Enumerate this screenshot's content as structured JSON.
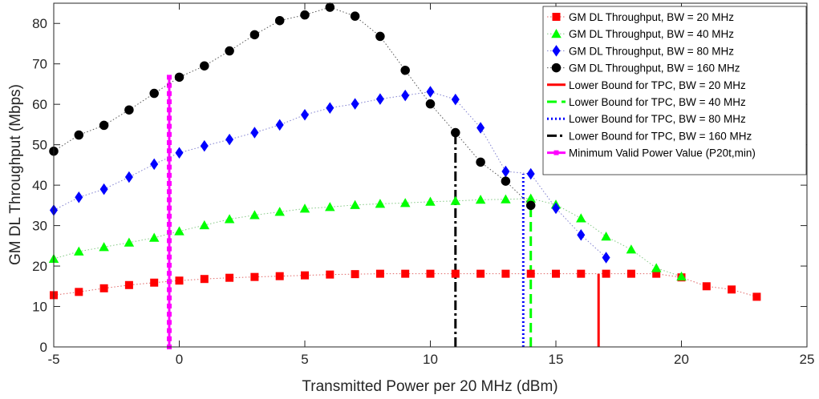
{
  "chart_data": {
    "type": "line",
    "title": "",
    "xlabel": "Transmitted Power per 20 MHz (dBm)",
    "ylabel": "GM DL Throughput (Mbps)",
    "xlim": [
      -5,
      25
    ],
    "ylim": [
      0,
      85
    ],
    "xticks": [
      -5,
      0,
      5,
      10,
      15,
      20,
      25
    ],
    "yticks": [
      0,
      10,
      20,
      30,
      40,
      50,
      60,
      70,
      80
    ],
    "xtick_labels": [
      "-5",
      "0",
      "5",
      "10",
      "15",
      "20",
      "25"
    ],
    "ytick_labels": [
      "0",
      "10",
      "20",
      "30",
      "40",
      "50",
      "60",
      "70",
      "80"
    ],
    "grid": false,
    "legend_position": "top-right",
    "series": [
      {
        "name": "GM DL Throughput, BW = 20 MHz",
        "color": "#ff0000",
        "marker": "square",
        "line": "dotted",
        "x": [
          -5,
          -4,
          -3,
          -2,
          -1,
          0,
          1,
          2,
          3,
          4,
          5,
          6,
          7,
          8,
          9,
          10,
          11,
          12,
          13,
          14,
          15,
          16,
          17,
          18,
          19,
          20,
          21,
          22,
          23
        ],
        "y": [
          12.8,
          13.6,
          14.5,
          15.3,
          15.9,
          16.4,
          16.8,
          17.1,
          17.3,
          17.5,
          17.7,
          17.9,
          18.0,
          18.1,
          18.1,
          18.1,
          18.1,
          18.1,
          18.1,
          18.1,
          18.1,
          18.1,
          18.1,
          18.1,
          18.1,
          17.2,
          15.0,
          14.2,
          12.4
        ]
      },
      {
        "name": "GM DL Throughput, BW = 40 MHz",
        "color": "#00ff00",
        "marker": "triangle",
        "line": "dotted",
        "x": [
          -5,
          -4,
          -3,
          -2,
          -1,
          0,
          1,
          2,
          3,
          4,
          5,
          6,
          7,
          8,
          9,
          10,
          11,
          12,
          13,
          14,
          15,
          16,
          17,
          18,
          19,
          20
        ],
        "y": [
          21.8,
          23.6,
          24.7,
          25.8,
          27.0,
          28.6,
          30.1,
          31.6,
          32.6,
          33.4,
          34.2,
          34.6,
          35.1,
          35.4,
          35.6,
          35.9,
          36.1,
          36.4,
          36.5,
          36.7,
          35.2,
          31.8,
          27.3,
          24.1,
          19.5,
          17.4
        ]
      },
      {
        "name": "GM DL Throughput, BW = 80 MHz",
        "color": "#0000ff",
        "marker": "diamond",
        "line": "dotted",
        "x": [
          -5,
          -4,
          -3,
          -2,
          -1,
          0,
          1,
          2,
          3,
          4,
          5,
          6,
          7,
          8,
          9,
          10,
          11,
          12,
          13,
          14,
          15,
          16,
          17
        ],
        "y": [
          33.8,
          37.0,
          39.0,
          42.0,
          45.2,
          48.0,
          49.7,
          51.3,
          53.0,
          54.9,
          57.4,
          59.1,
          60.1,
          61.3,
          62.2,
          63.1,
          61.2,
          54.2,
          43.4,
          42.8,
          34.3,
          27.7,
          22.1
        ]
      },
      {
        "name": "GM DL Throughput, BW = 160 MHz",
        "color": "#000000",
        "marker": "circle",
        "line": "dotted",
        "x": [
          -5,
          -4,
          -3,
          -2,
          -1,
          0,
          1,
          2,
          3,
          4,
          5,
          6,
          7,
          8,
          9,
          10,
          11,
          12,
          13,
          14
        ],
        "y": [
          48.4,
          52.4,
          54.8,
          58.6,
          62.7,
          66.7,
          69.5,
          73.2,
          77.2,
          80.7,
          82.1,
          84.0,
          81.8,
          76.8,
          68.4,
          60.1,
          53.0,
          45.7,
          41.0,
          35.0
        ]
      },
      {
        "name": "Lower Bound for TPC, BW = 20 MHz",
        "color": "#ff0000",
        "line": "solid",
        "x": [
          16.7,
          16.7
        ],
        "y": [
          0,
          18.1
        ]
      },
      {
        "name": "Lower Bound for TPC, BW = 40 MHz",
        "color": "#00ff00",
        "line": "dashed",
        "x": [
          14.0,
          14.0
        ],
        "y": [
          0,
          36.7
        ]
      },
      {
        "name": "Lower Bound for TPC, BW = 80 MHz",
        "color": "#0000ff",
        "line": "dotted",
        "x": [
          13.7,
          13.7
        ],
        "y": [
          0,
          42.8
        ]
      },
      {
        "name": "Lower Bound for TPC, BW = 160 MHz",
        "color": "#000000",
        "line": "dashdot",
        "x": [
          11.0,
          11.0
        ],
        "y": [
          0,
          53.0
        ]
      },
      {
        "name": "Minimum Valid Power Value (P20t,min)",
        "color": "#ff00ff",
        "line": "solid",
        "marker": "square",
        "x": [
          -0.4,
          -0.4
        ],
        "y": [
          0,
          67
        ]
      }
    ]
  }
}
